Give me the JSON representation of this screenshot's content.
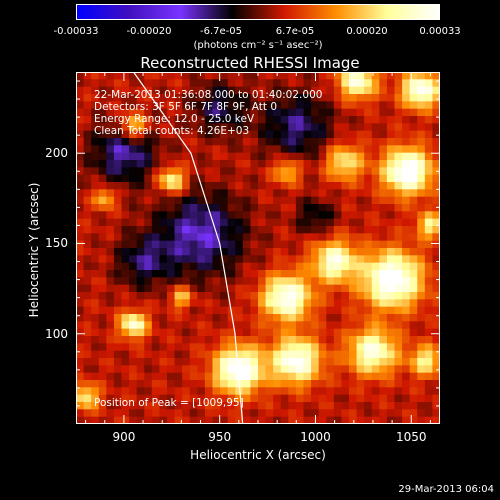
{
  "chart_data": {
    "type": "heatmap",
    "title": "Reconstructed RHESSI Image",
    "xlabel": "Heliocentric X (arcsec)",
    "ylabel": "Heliocentric Y (arcsec)",
    "xlim": [
      875,
      1065
    ],
    "ylim": [
      50,
      245
    ],
    "x_ticks": [
      900,
      950,
      1000,
      1050
    ],
    "y_ticks": [
      100,
      150,
      200
    ],
    "colorscale": [
      "#0000ff",
      "#4010c0",
      "#7a33ff",
      "#000000",
      "#d01800",
      "#ff8c00",
      "#ffff9a",
      "#ffffff"
    ],
    "colorbar": {
      "range": [
        -0.00033,
        0.00033
      ],
      "tick_values": [
        -0.00033,
        -0.0002,
        -6.7e-05,
        6.7e-05,
        0.0002,
        0.00033
      ],
      "tick_labels": [
        "-0.00033",
        "-0.00020",
        "-6.7e-05",
        "6.7e-05",
        "0.00020",
        "0.00033"
      ],
      "unit_label": "(photons cm⁻² s⁻¹ asec⁻²)"
    },
    "limb_curve": [
      [
        905,
        245
      ],
      [
        935,
        200
      ],
      [
        950,
        150
      ],
      [
        958,
        100
      ],
      [
        962,
        50
      ]
    ],
    "grid_size": [
      48,
      48
    ],
    "peaks": [
      {
        "x": 1022,
        "y": 240,
        "s": 7,
        "a": 0.8
      },
      {
        "x": 1055,
        "y": 235,
        "s": 7,
        "a": 0.9
      },
      {
        "x": 1048,
        "y": 190,
        "s": 9,
        "a": 1.0
      },
      {
        "x": 1015,
        "y": 195,
        "s": 7,
        "a": 0.6
      },
      {
        "x": 985,
        "y": 190,
        "s": 5,
        "a": 0.5
      },
      {
        "x": 905,
        "y": 215,
        "s": 5,
        "a": 0.6
      },
      {
        "x": 925,
        "y": 185,
        "s": 5,
        "a": 0.7
      },
      {
        "x": 890,
        "y": 175,
        "s": 4,
        "a": 0.5
      },
      {
        "x": 1040,
        "y": 130,
        "s": 11,
        "a": 1.0
      },
      {
        "x": 1010,
        "y": 140,
        "s": 8,
        "a": 0.8
      },
      {
        "x": 985,
        "y": 120,
        "s": 9,
        "a": 0.9
      },
      {
        "x": 960,
        "y": 80,
        "s": 9,
        "a": 1.0
      },
      {
        "x": 990,
        "y": 85,
        "s": 9,
        "a": 0.9
      },
      {
        "x": 1030,
        "y": 90,
        "s": 9,
        "a": 0.8
      },
      {
        "x": 1058,
        "y": 85,
        "s": 6,
        "a": 0.6
      },
      {
        "x": 905,
        "y": 105,
        "s": 5,
        "a": 0.8
      },
      {
        "x": 880,
        "y": 65,
        "s": 5,
        "a": 0.6
      },
      {
        "x": 930,
        "y": 120,
        "s": 4,
        "a": 0.5
      },
      {
        "x": 1060,
        "y": 160,
        "s": 5,
        "a": 0.6
      }
    ],
    "troughs": [
      {
        "x": 900,
        "y": 200,
        "s": 12,
        "a": 0.45
      },
      {
        "x": 940,
        "y": 155,
        "s": 16,
        "a": 0.5
      },
      {
        "x": 990,
        "y": 215,
        "s": 13,
        "a": 0.4
      },
      {
        "x": 950,
        "y": 225,
        "s": 10,
        "a": 0.35
      },
      {
        "x": 1000,
        "y": 165,
        "s": 7,
        "a": 0.3
      },
      {
        "x": 910,
        "y": 140,
        "s": 10,
        "a": 0.35
      }
    ]
  },
  "annotations": {
    "time_range": "22-Mar-2013 01:36:08.000 to 01:40:02.000",
    "detectors": "Detectors: 3F 5F 6F 7F 8F 9F, Att 0",
    "energy": "Energy Range: 12.0 - 25.0 keV",
    "clean": "Clean     Total counts: 4.26E+03",
    "peak": "Position of Peak = [1009,95]"
  },
  "timestamp": "29-Mar-2013 06:04"
}
